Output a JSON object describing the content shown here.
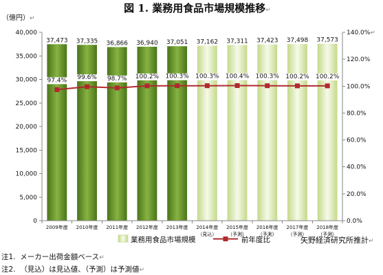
{
  "para_mark": "↵",
  "colors": {
    "bar_actual": [
      "#4a7418",
      "#86b343",
      "#4a7418"
    ],
    "bar_projected": [
      "#c4d98a",
      "#f6faea",
      "#c4d98a"
    ],
    "line": "#b02a2e",
    "axis": "#868686",
    "paragraph_mark": "#808080"
  },
  "chart_data": {
    "type": "bar",
    "title": "図 1. 業務用食品市場規模推移",
    "categories": [
      "2009年度",
      "2010年度",
      "2011年度",
      "2012年度",
      "2013年度",
      "2014年度",
      "2015年度",
      "2016年度",
      "2017年度",
      "2018年度"
    ],
    "category_notes": [
      "",
      "",
      "",
      "",
      "",
      "（見込）",
      "（予測）",
      "（予測）",
      "（予測）",
      "（予測）"
    ],
    "y_left": {
      "label": "（億円）",
      "range": [
        0,
        40000
      ],
      "tick_labels": [
        "0",
        "5,000",
        "10,000",
        "15,000",
        "20,000",
        "25,000",
        "30,000",
        "35,000",
        "40,000"
      ]
    },
    "y_right": {
      "range": [
        0,
        140
      ],
      "tick_labels": [
        "0.0%",
        "20.0%",
        "40.0%",
        "60.0%",
        "80.0%",
        "100.0%",
        "120.0%",
        "140.0%"
      ]
    },
    "series": [
      {
        "name": "業務用食品市場規模",
        "type": "bar",
        "values": [
          37473,
          37335,
          36866,
          36940,
          37051,
          37162,
          37311,
          37423,
          37498,
          37573
        ],
        "light_from_index": 5
      },
      {
        "name": "前年度比",
        "type": "line",
        "unit": "%",
        "values": [
          97.4,
          99.6,
          98.7,
          100.2,
          100.3,
          100.3,
          100.4,
          100.3,
          100.2,
          100.2
        ]
      }
    ],
    "grid": false,
    "legend": "bottom"
  },
  "source": "矢野経済研究所推計",
  "notes": [
    "注1.  メーカー出荷金額ベース",
    "注2.  （見込）は見込値、（予測）は予測値"
  ]
}
